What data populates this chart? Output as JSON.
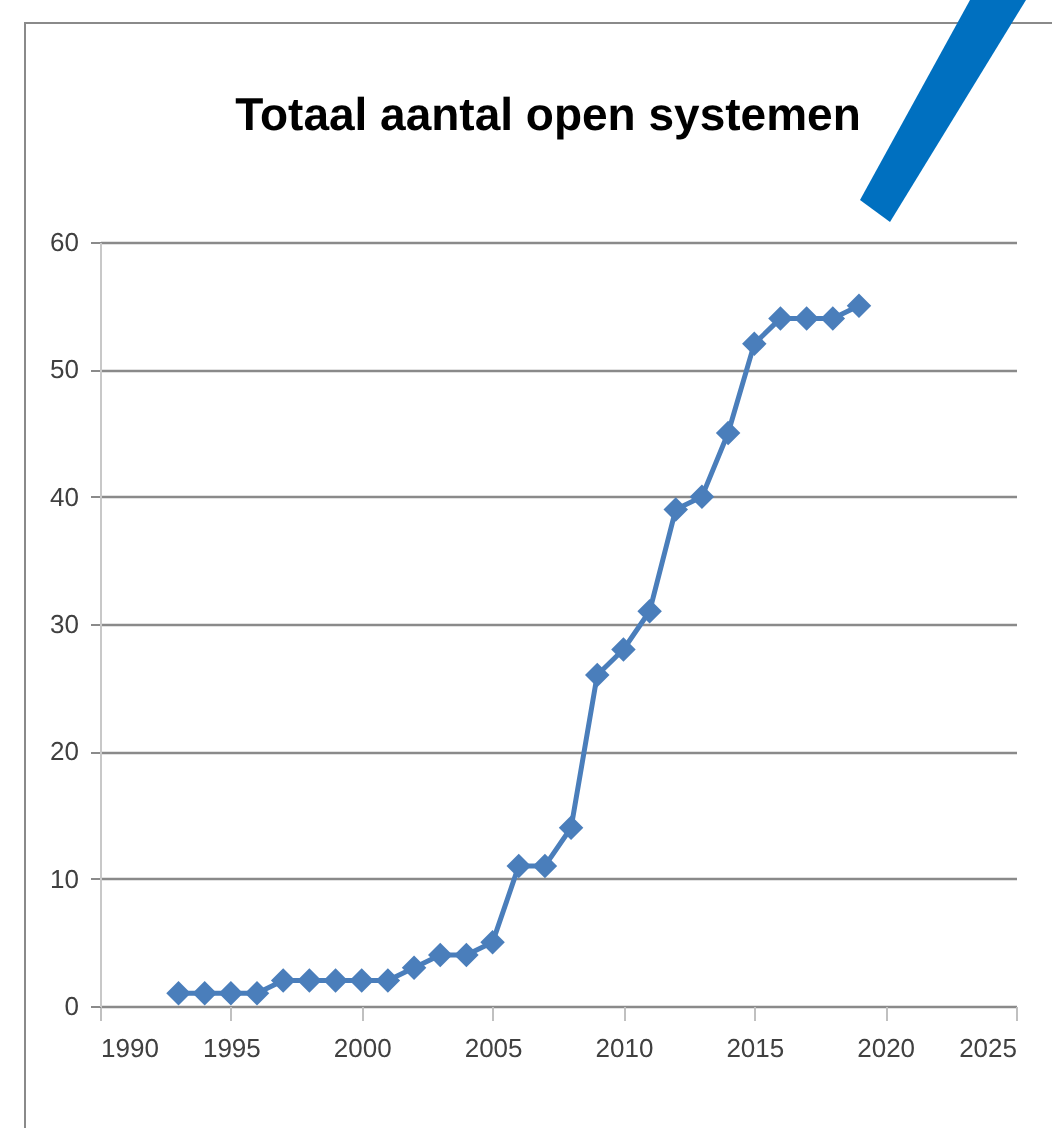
{
  "chart_data": {
    "type": "line",
    "title": "Totaal aantal open systemen",
    "x": [
      1993,
      1994,
      1995,
      1996,
      1997,
      1998,
      1999,
      2000,
      2001,
      2002,
      2003,
      2004,
      2005,
      2006,
      2007,
      2008,
      2009,
      2010,
      2011,
      2012,
      2013,
      2014,
      2015,
      2016,
      2017,
      2018,
      2019
    ],
    "series": [
      {
        "color": "#4a7ebb",
        "values": [
          1,
          1,
          1,
          1,
          2,
          2,
          2,
          2,
          2,
          3,
          4,
          4,
          5,
          11,
          11,
          14,
          26,
          28,
          31,
          39,
          40,
          45,
          52,
          54,
          54,
          54,
          55
        ]
      }
    ],
    "xlim": [
      1990,
      2025
    ],
    "xticks": [
      1990,
      1995,
      2000,
      2005,
      2010,
      2015,
      2020,
      2025
    ],
    "ylim": [
      0,
      60
    ],
    "yticks": [
      0,
      10,
      20,
      30,
      40,
      50,
      60
    ],
    "grid": "y",
    "marker": "diamond",
    "line_style": "solid"
  }
}
